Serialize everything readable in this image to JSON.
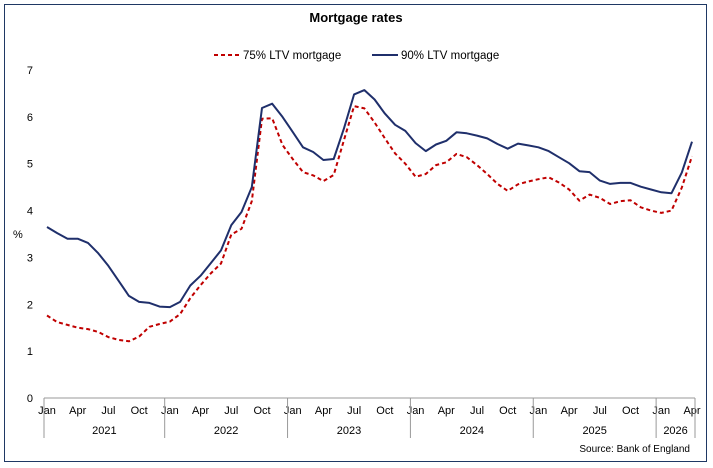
{
  "chart_data": {
    "type": "line",
    "title": "Mortgage rates",
    "ylabel": "%",
    "ylim": [
      0,
      7
    ],
    "yticks": [
      "0",
      "1",
      "2",
      "3",
      "4",
      "5",
      "6",
      "7"
    ],
    "grid": false,
    "legend_position": "top-center",
    "source": "Source: Bank of England",
    "x_tick_labels": [
      "Jan",
      "Apr",
      "Jul",
      "Oct",
      "Jan",
      "Apr",
      "Jul",
      "Oct",
      "Jan",
      "Apr",
      "Jul",
      "Oct",
      "Jan",
      "Apr",
      "Jul",
      "Oct",
      "Jan",
      "Apr",
      "Jul",
      "Oct",
      "Jan",
      "Apr"
    ],
    "year_labels": [
      "2021",
      "2022",
      "2023",
      "2024",
      "2025",
      "2026"
    ],
    "x": [
      "Jan 2021",
      "Feb 2021",
      "Mar 2021",
      "Apr 2021",
      "May 2021",
      "Jun 2021",
      "Jul 2021",
      "Aug 2021",
      "Sep 2021",
      "Oct 2021",
      "Nov 2021",
      "Dec 2021",
      "Jan 2022",
      "Feb 2022",
      "Mar 2022",
      "Apr 2022",
      "May 2022",
      "Jun 2022",
      "Jul 2022",
      "Aug 2022",
      "Sep 2022",
      "Oct 2022",
      "Nov 2022",
      "Dec 2022",
      "Jan 2023",
      "Feb 2023",
      "Mar 2023",
      "Apr 2023",
      "May 2023",
      "Jun 2023",
      "Jul 2023",
      "Aug 2023",
      "Sep 2023",
      "Oct 2023",
      "Nov 2023",
      "Dec 2023",
      "Jan 2024",
      "Feb 2024",
      "Mar 2024",
      "Apr 2024",
      "May 2024",
      "Jun 2024",
      "Jul 2024",
      "Aug 2024",
      "Sep 2024",
      "Oct 2024",
      "Nov 2024",
      "Dec 2024",
      "Jan 2025",
      "Feb 2025",
      "Mar 2025",
      "Apr 2025",
      "May 2025",
      "Jun 2025",
      "Jul 2025",
      "Aug 2025",
      "Sep 2025",
      "Oct 2025",
      "Nov 2025",
      "Dec 2025",
      "Jan 2026",
      "Feb 2026",
      "Mar 2026",
      "Apr 2026"
    ],
    "series": [
      {
        "name": "75% LTV mortgage",
        "color": "#c00000",
        "dash": true,
        "values": [
          1.76,
          1.62,
          1.56,
          1.5,
          1.47,
          1.41,
          1.3,
          1.24,
          1.21,
          1.31,
          1.52,
          1.58,
          1.63,
          1.79,
          2.13,
          2.41,
          2.66,
          2.87,
          3.49,
          3.61,
          4.2,
          5.96,
          5.97,
          5.4,
          5.1,
          4.82,
          4.75,
          4.63,
          4.76,
          5.5,
          6.23,
          6.18,
          5.88,
          5.54,
          5.22,
          5.0,
          4.72,
          4.78,
          4.97,
          5.03,
          5.21,
          5.14,
          4.97,
          4.78,
          4.57,
          4.42,
          4.56,
          4.62,
          4.67,
          4.71,
          4.6,
          4.45,
          4.21,
          4.34,
          4.27,
          4.14,
          4.2,
          4.22,
          4.07,
          4.0,
          3.95,
          4.0,
          4.49,
          5.16
        ]
      },
      {
        "name": "90% LTV mortgage",
        "color": "#1f2f6b",
        "dash": false,
        "values": [
          3.65,
          3.52,
          3.4,
          3.4,
          3.31,
          3.09,
          2.82,
          2.5,
          2.18,
          2.05,
          2.03,
          1.95,
          1.94,
          2.05,
          2.4,
          2.61,
          2.88,
          3.15,
          3.69,
          3.97,
          4.5,
          6.19,
          6.28,
          6.0,
          5.68,
          5.35,
          5.25,
          5.08,
          5.1,
          5.75,
          6.48,
          6.57,
          6.37,
          6.07,
          5.83,
          5.7,
          5.44,
          5.27,
          5.41,
          5.49,
          5.67,
          5.65,
          5.6,
          5.54,
          5.42,
          5.32,
          5.43,
          5.39,
          5.35,
          5.27,
          5.14,
          5.01,
          4.84,
          4.82,
          4.64,
          4.57,
          4.59,
          4.59,
          4.51,
          4.45,
          4.39,
          4.37,
          4.81,
          5.47
        ]
      }
    ]
  }
}
